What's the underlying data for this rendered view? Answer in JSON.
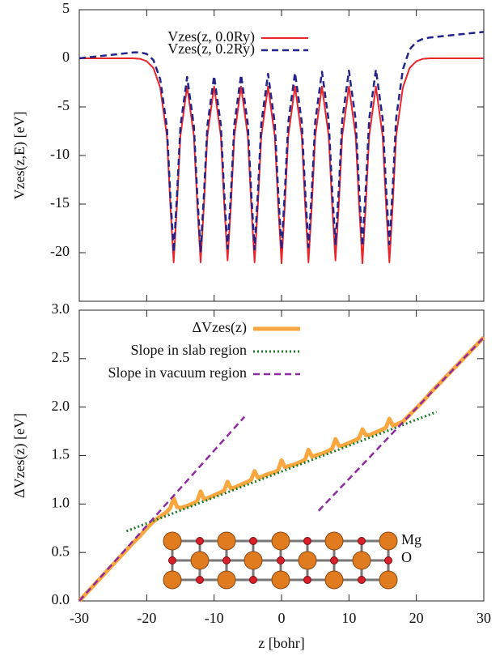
{
  "chart_data": [
    {
      "type": "line",
      "ylabel": "Vzes(z,E) [eV]",
      "xlim": [
        -30,
        30
      ],
      "xticks": [
        -30,
        -20,
        -10,
        0,
        10,
        20,
        30
      ],
      "ylim": [
        -25,
        5
      ],
      "yticks": [
        5,
        0,
        -5,
        -10,
        -15,
        -20
      ],
      "legend": "top-left",
      "x": [
        -30,
        -26,
        -22,
        -21,
        -20,
        -19,
        -18,
        -17,
        -16.5,
        -16,
        -15.5,
        -15,
        -14,
        -13,
        -12.5,
        -12,
        -11.5,
        -11,
        -10,
        -9,
        -8.5,
        -8,
        -7.5,
        -7,
        -6,
        -5,
        -4.5,
        -4,
        -3.5,
        -3,
        -2,
        -1,
        -0.5,
        0,
        0.5,
        1,
        2,
        3,
        3.5,
        4,
        4.5,
        5,
        6,
        7,
        7.5,
        8,
        8.5,
        9,
        10,
        11,
        11.5,
        12,
        12.5,
        13,
        14,
        15,
        15.5,
        16,
        16.5,
        17,
        18,
        19,
        20,
        21,
        22,
        26,
        30
      ],
      "series": [
        {
          "name": "Vzes(z, 0.0Ry)",
          "color": "#e8262b",
          "style": "solid",
          "values": [
            0,
            0,
            0,
            -0.05,
            -0.3,
            -1,
            -3,
            -8,
            -15,
            -21,
            -15,
            -8,
            -2.9,
            -8,
            -15,
            -21,
            -15,
            -8,
            -2.9,
            -8,
            -15,
            -20.8,
            -15,
            -8,
            -2.9,
            -8,
            -15,
            -21,
            -15,
            -8,
            -2.9,
            -8,
            -15,
            -21.1,
            -15,
            -8,
            -2.9,
            -8,
            -15,
            -21,
            -15,
            -8,
            -2.9,
            -8,
            -15,
            -20.8,
            -15,
            -8,
            -2.9,
            -8,
            -15,
            -21.1,
            -15,
            -8,
            -2.9,
            -8,
            -15,
            -21,
            -15,
            -8,
            -3,
            -1,
            -0.3,
            -0.05,
            0,
            0,
            0
          ]
        },
        {
          "name": "Vzes(z, 0.2Ry)",
          "color": "#23248a",
          "style": "dashed",
          "values": [
            0,
            0.3,
            0.6,
            0.62,
            0.45,
            -0.18,
            -2.13,
            -7.08,
            -14.04,
            -19.94,
            -14.03,
            -7.04,
            -1.92,
            -6.99,
            -13.97,
            -19.87,
            -13.95,
            -6.94,
            -1.81,
            -6.88,
            -13.86,
            -19.57,
            -13.84,
            -6.83,
            -1.7,
            -6.77,
            -13.75,
            -19.66,
            -13.73,
            -6.72,
            -1.59,
            -6.67,
            -13.65,
            -19.65,
            -13.62,
            -6.61,
            -1.49,
            -6.56,
            -13.54,
            -19.44,
            -13.51,
            -6.5,
            -1.38,
            -6.45,
            -13.43,
            -19.13,
            -13.4,
            -6.4,
            -1.27,
            -6.34,
            -13.32,
            -19.33,
            -13.29,
            -6.29,
            -1.16,
            -6.23,
            -13.21,
            -19.12,
            -13.19,
            -6.18,
            -1.15,
            0.92,
            1.69,
            2.01,
            2.14,
            2.43,
            2.72
          ]
        }
      ]
    },
    {
      "type": "line",
      "ylabel": "ΔVzes(z) [eV]",
      "xlabel": "z [bohr]",
      "xlim": [
        -30,
        30
      ],
      "xticks": [
        -30,
        -20,
        -10,
        0,
        10,
        20,
        30
      ],
      "ylim": [
        0,
        3
      ],
      "yticks": [
        {
          "value": 0,
          "label": "0.0"
        },
        0.5,
        {
          "value": 1,
          "label": "1.0"
        },
        1.5,
        {
          "value": 2,
          "label": "2.0"
        },
        2.5,
        {
          "value": 3,
          "label": "3.0"
        }
      ],
      "legend": "top-left",
      "annotations": [
        "Mg",
        "O"
      ],
      "series": [
        {
          "name": "ΔVzes(z)",
          "color": "#f9a73e",
          "style": "thick",
          "x": [
            -30,
            -26,
            -22,
            -21,
            -20,
            -19,
            -18,
            -17,
            -16.5,
            -16,
            -15.5,
            -15,
            -14,
            -13,
            -12.5,
            -12,
            -11.5,
            -11,
            -10,
            -9,
            -8.5,
            -8,
            -7.5,
            -7,
            -6,
            -5,
            -4.5,
            -4,
            -3.5,
            -3,
            -2,
            -1,
            -0.5,
            0,
            0.5,
            1,
            2,
            3,
            3.5,
            4,
            4.5,
            5,
            6,
            7,
            7.5,
            8,
            8.5,
            9,
            10,
            11,
            11.5,
            12,
            12.5,
            13,
            14,
            15,
            15.5,
            16,
            16.5,
            17,
            18,
            19,
            20,
            21,
            22,
            26,
            30
          ],
          "values": [
            0,
            0.3,
            0.6,
            0.67,
            0.75,
            0.82,
            0.87,
            0.92,
            0.96,
            1.06,
            0.97,
            0.96,
            0.98,
            1.01,
            1.03,
            1.13,
            1.05,
            1.06,
            1.09,
            1.12,
            1.14,
            1.23,
            1.16,
            1.17,
            1.2,
            1.23,
            1.25,
            1.34,
            1.27,
            1.28,
            1.31,
            1.33,
            1.35,
            1.45,
            1.38,
            1.39,
            1.41,
            1.44,
            1.46,
            1.56,
            1.49,
            1.5,
            1.52,
            1.55,
            1.57,
            1.67,
            1.6,
            1.6,
            1.63,
            1.66,
            1.68,
            1.77,
            1.71,
            1.71,
            1.74,
            1.77,
            1.79,
            1.88,
            1.81,
            1.82,
            1.85,
            1.92,
            1.99,
            2.06,
            2.14,
            2.43,
            2.72
          ]
        },
        {
          "name": "Slope in slab region",
          "color": "#1f7a2a",
          "style": "dotted",
          "x": [
            -23,
            23
          ],
          "values": [
            0.72,
            1.95
          ]
        },
        {
          "name": "Slope in vacuum region",
          "color": "#8e2aa0",
          "style": "dashed",
          "x": [
            -30,
            -5.5,
            0,
            5.5,
            30
          ],
          "values": [
            0,
            1.9,
            null,
            0.93,
            2.72
          ]
        }
      ]
    }
  ]
}
